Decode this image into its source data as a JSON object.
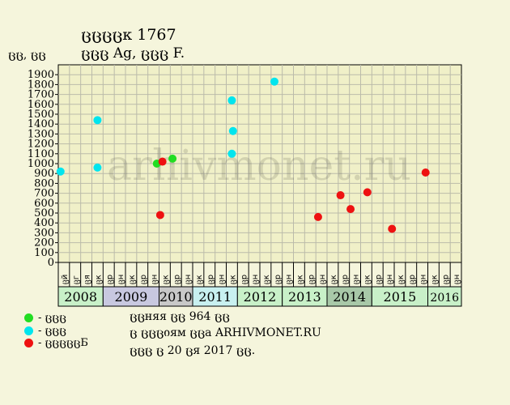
{
  "header": {
    "title_line1": "ცცცცк 1767",
    "title_line2": "ცცც Ag, ცცც F.",
    "y_unit": "ცც, ცც"
  },
  "watermark": "arhivmonet.ru",
  "legend": [
    {
      "label": "- ცცც",
      "color": "#22dd22"
    },
    {
      "label": "- ცცც",
      "color": "#00e5ee"
    },
    {
      "label": "- ცცცცცБ",
      "color": "#ee1111"
    }
  ],
  "footer": {
    "line1": "ცცняя ცც 964 ცც",
    "line2": "ც ცცციям ცცa ARHIVMONET.RU",
    "line3": "ცცც ც 20 ცя 2017 ცც."
  },
  "colors": {
    "plot_bg": "#f0f0c8",
    "grid": "#bbbbaa",
    "green": "#22dd22",
    "cyan": "#00e5ee",
    "red": "#ee1111"
  },
  "chart_data": {
    "type": "scatter",
    "title": "ცცცცк 1767",
    "subtitle": "ცცც Ag, ცცც F.",
    "ylabel": "ცც, ცც",
    "ylim": [
      0,
      2000
    ],
    "yticks": [
      0,
      100,
      200,
      300,
      400,
      500,
      600,
      700,
      800,
      900,
      1000,
      1100,
      1200,
      1300,
      1400,
      1500,
      1600,
      1700,
      1800,
      1900
    ],
    "grid": true,
    "months": [
      "ცй",
      "ცг",
      "ცя",
      "ცк",
      "ცр",
      "ცн",
      "ცк",
      "ცр",
      "ცн",
      "ცк",
      "ცр",
      "ცн",
      "ცк",
      "ცр",
      "ცн",
      "ცк",
      "ცр",
      "ცн",
      "ცк",
      "ცр",
      "ცн",
      "ცк",
      "ცр",
      "ცн",
      "ცк",
      "ცр",
      "ცн",
      "ცк",
      "ცр",
      "ცн",
      "ცк",
      "ცр",
      "ცн",
      "ცк",
      "ცр",
      "ცн"
    ],
    "years": [
      {
        "label": "2008",
        "start": 0,
        "count": 4,
        "color": "#c8f0c8"
      },
      {
        "label": "2009",
        "start": 4,
        "count": 5,
        "color": "#c8c8e0"
      },
      {
        "label": "2010",
        "start": 9,
        "count": 3,
        "color": "#c8c8c8"
      },
      {
        "label": "2011",
        "start": 12,
        "count": 4,
        "color": "#c8f0f0"
      },
      {
        "label": "2012",
        "start": 16,
        "count": 4,
        "color": "#c8f0c8"
      },
      {
        "label": "2013",
        "start": 20,
        "count": 4,
        "color": "#c8f0c8"
      },
      {
        "label": "2014",
        "start": 24,
        "count": 4,
        "color": "#a8c8a8"
      },
      {
        "label": "2015",
        "start": 28,
        "count": 5,
        "color": "#c8f0c8"
      },
      {
        "label": "2016",
        "start": 33,
        "count": 3,
        "color": "#c8f0c8"
      }
    ],
    "series": [
      {
        "color": "green",
        "points": [
          [
            8.8,
            1000
          ],
          [
            10.2,
            1050
          ]
        ]
      },
      {
        "color": "cyan",
        "points": [
          [
            0.2,
            920
          ],
          [
            3.5,
            1440
          ],
          [
            3.5,
            960
          ],
          [
            15.5,
            1640
          ],
          [
            15.6,
            1330
          ],
          [
            15.5,
            1100
          ],
          [
            19.3,
            1830
          ]
        ]
      },
      {
        "color": "red",
        "points": [
          [
            9.1,
            480
          ],
          [
            9.3,
            1020
          ],
          [
            23.2,
            460
          ],
          [
            25.2,
            680
          ],
          [
            26.1,
            540
          ],
          [
            27.6,
            710
          ],
          [
            29.8,
            340
          ],
          [
            32.8,
            910
          ]
        ]
      }
    ]
  }
}
